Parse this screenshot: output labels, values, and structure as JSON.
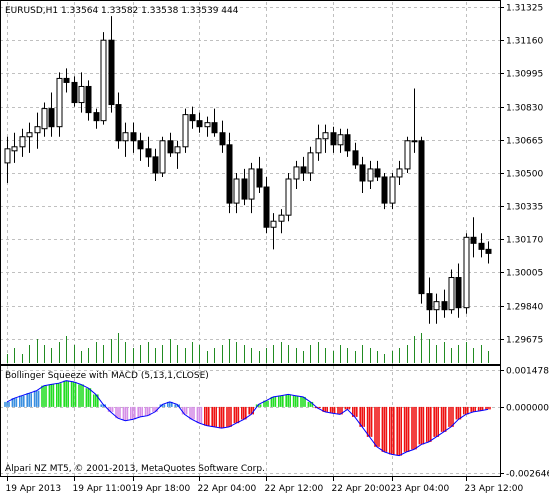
{
  "header": {
    "symbol_info": "EURUSD,H1  1.33564 1.33582 1.33538 1.33539  444"
  },
  "indicator": {
    "title": "Bollinger Squeeze with MACD (5,13,1,CLOSE)",
    "copyright": "Alpari NZ MT5, © 2001-2013, MetaQuotes Software Corp."
  },
  "colors": {
    "bull": "#ffffff",
    "bear": "#000000",
    "volume": "#228b22",
    "grid": "#c0c0c0",
    "hist_blue": "#3a8fe0",
    "hist_green": "#22dd22",
    "hist_violet": "#d58ee6",
    "hist_red": "#ee1111",
    "macd_line": "#0000ff"
  },
  "chart_data": [
    {
      "type": "candlestick",
      "ylim": [
        1.2955,
        1.3135
      ],
      "y_ticks": [
        "1.31325",
        "1.31160",
        "1.30995",
        "1.30830",
        "1.30665",
        "1.30500",
        "1.30335",
        "1.30170",
        "1.30005",
        "1.29840",
        "1.29675"
      ],
      "x_ticks": [
        "19 Apr 2013",
        "19 Apr 11:00",
        "19 Apr 18:00",
        "22 Apr 04:00",
        "22 Apr 12:00",
        "22 Apr 20:00",
        "23 Apr 04:00",
        "23 Apr 12:00"
      ],
      "ohlc": [
        [
          1.3055,
          1.3068,
          1.3045,
          1.3062
        ],
        [
          1.3061,
          1.307,
          1.3055,
          1.3063
        ],
        [
          1.3063,
          1.3072,
          1.3058,
          1.3068
        ],
        [
          1.3068,
          1.3075,
          1.306,
          1.307
        ],
        [
          1.307,
          1.308,
          1.3062,
          1.3073
        ],
        [
          1.3072,
          1.3085,
          1.3068,
          1.3082
        ],
        [
          1.3082,
          1.309,
          1.3068,
          1.3073
        ],
        [
          1.3073,
          1.31,
          1.3068,
          1.3097
        ],
        [
          1.3097,
          1.3102,
          1.309,
          1.3095
        ],
        [
          1.3095,
          1.3098,
          1.3083,
          1.3085
        ],
        [
          1.3085,
          1.31,
          1.308,
          1.3093
        ],
        [
          1.3093,
          1.3096,
          1.3076,
          1.308
        ],
        [
          1.308,
          1.3082,
          1.3072,
          1.3076
        ],
        [
          1.3076,
          1.312,
          1.3074,
          1.3116
        ],
        [
          1.3116,
          1.3128,
          1.308,
          1.3084
        ],
        [
          1.3084,
          1.309,
          1.3062,
          1.3066
        ],
        [
          1.3066,
          1.3075,
          1.3058,
          1.307
        ],
        [
          1.307,
          1.3075,
          1.306,
          1.3066
        ],
        [
          1.3066,
          1.307,
          1.3056,
          1.3062
        ],
        [
          1.3062,
          1.3068,
          1.3053,
          1.3058
        ],
        [
          1.3058,
          1.3062,
          1.3046,
          1.305
        ],
        [
          1.305,
          1.3068,
          1.3048,
          1.3066
        ],
        [
          1.3066,
          1.307,
          1.3058,
          1.306
        ],
        [
          1.306,
          1.3066,
          1.3052,
          1.3063
        ],
        [
          1.3063,
          1.3082,
          1.306,
          1.3079
        ],
        [
          1.3079,
          1.3083,
          1.3072,
          1.3076
        ],
        [
          1.3076,
          1.308,
          1.307,
          1.3073
        ],
        [
          1.3073,
          1.3078,
          1.3068,
          1.3075
        ],
        [
          1.3075,
          1.3082,
          1.3068,
          1.307
        ],
        [
          1.307,
          1.3076,
          1.306,
          1.3064
        ],
        [
          1.3064,
          1.307,
          1.303,
          1.3035
        ],
        [
          1.3035,
          1.305,
          1.303,
          1.3047
        ],
        [
          1.3047,
          1.3052,
          1.3034,
          1.3037
        ],
        [
          1.3037,
          1.3055,
          1.303,
          1.3052
        ],
        [
          1.3052,
          1.3058,
          1.304,
          1.3043
        ],
        [
          1.3043,
          1.3048,
          1.302,
          1.3023
        ],
        [
          1.3023,
          1.303,
          1.3012,
          1.3026
        ],
        [
          1.3026,
          1.3032,
          1.302,
          1.3029
        ],
        [
          1.3029,
          1.305,
          1.3026,
          1.3047
        ],
        [
          1.3047,
          1.3056,
          1.3042,
          1.3053
        ],
        [
          1.3053,
          1.3058,
          1.3046,
          1.305
        ],
        [
          1.305,
          1.3063,
          1.3046,
          1.306
        ],
        [
          1.306,
          1.3074,
          1.3056,
          1.3067
        ],
        [
          1.3067,
          1.3074,
          1.306,
          1.307
        ],
        [
          1.307,
          1.3073,
          1.306,
          1.3064
        ],
        [
          1.3064,
          1.3072,
          1.306,
          1.3069
        ],
        [
          1.3069,
          1.3072,
          1.3058,
          1.3061
        ],
        [
          1.3061,
          1.3065,
          1.3052,
          1.3054
        ],
        [
          1.3054,
          1.3058,
          1.304,
          1.3046
        ],
        [
          1.3046,
          1.3056,
          1.3042,
          1.3052
        ],
        [
          1.3052,
          1.3056,
          1.3046,
          1.3048
        ],
        [
          1.3048,
          1.305,
          1.3032,
          1.3035
        ],
        [
          1.3035,
          1.305,
          1.3032,
          1.3048
        ],
        [
          1.3048,
          1.3056,
          1.3044,
          1.3052
        ],
        [
          1.3052,
          1.3068,
          1.305,
          1.3066
        ],
        [
          1.3066,
          1.3092,
          1.306,
          1.3066
        ],
        [
          1.3066,
          1.3068,
          1.2985,
          1.299
        ],
        [
          1.299,
          1.2998,
          1.2975,
          1.2982
        ],
        [
          1.2982,
          1.299,
          1.2975,
          1.2986
        ],
        [
          1.2986,
          1.2992,
          1.2978,
          1.2982
        ],
        [
          1.2982,
          1.3002,
          1.298,
          1.2998
        ],
        [
          1.2998,
          1.3005,
          1.2978,
          1.2983
        ],
        [
          1.2983,
          1.302,
          1.298,
          1.3018
        ],
        [
          1.3018,
          1.3028,
          1.3008,
          1.3015
        ],
        [
          1.3015,
          1.302,
          1.3008,
          1.3012
        ],
        [
          1.3012,
          1.3016,
          1.3005,
          1.301
        ]
      ],
      "volume": [
        3,
        5,
        3,
        6,
        8,
        6,
        5,
        7,
        9,
        6,
        4,
        5,
        7,
        6,
        8,
        10,
        7,
        5,
        6,
        7,
        5,
        6,
        8,
        6,
        5,
        7,
        6,
        4,
        5,
        6,
        8,
        7,
        6,
        5,
        4,
        5,
        6,
        7,
        6,
        5,
        4,
        6,
        7,
        5,
        4,
        6,
        5,
        4,
        6,
        5,
        4,
        3,
        4,
        5,
        6,
        9,
        10,
        8,
        6,
        7,
        5,
        6,
        7,
        5,
        6,
        4
      ]
    },
    {
      "type": "bar",
      "name": "Bollinger Squeeze with MACD",
      "ylim": [
        -0.002646,
        0.001478
      ],
      "y_ticks": [
        "0.001478",
        "0.000000",
        "-0.002646"
      ],
      "values": [
        0.0002,
        0.00035,
        0.00045,
        0.00055,
        0.00065,
        0.00085,
        0.0009,
        0.00095,
        0.00105,
        0.001,
        0.0009,
        0.00075,
        0.0005,
        0.0001,
        -0.0002,
        -0.00045,
        -0.00055,
        -0.0005,
        -0.0004,
        -0.00035,
        -0.0002,
        0.0001,
        0.0002,
        0.0001,
        -0.0003,
        -0.0005,
        -0.00065,
        -0.00075,
        -0.0008,
        -0.00085,
        -0.0008,
        -0.00065,
        -0.0005,
        -0.0003,
        0.0001,
        0.00025,
        0.0004,
        0.00045,
        0.0005,
        0.00045,
        0.0004,
        0.0002,
        -5e-05,
        -0.0002,
        -0.00025,
        -0.0003,
        -0.0001,
        -0.0004,
        -0.0008,
        -0.0012,
        -0.0016,
        -0.0018,
        -0.0019,
        -0.00195,
        -0.0018,
        -0.0017,
        -0.0015,
        -0.0014,
        -0.0012,
        -0.001,
        -0.0008,
        -0.0005,
        -0.0003,
        -0.0002,
        -0.00015,
        -0.0001
      ],
      "colors": [
        "hist_blue",
        "hist_blue",
        "hist_blue",
        "hist_blue",
        "hist_blue",
        "hist_green",
        "hist_green",
        "hist_green",
        "hist_green",
        "hist_green",
        "hist_green",
        "hist_green",
        "hist_green",
        "hist_blue",
        "hist_violet",
        "hist_violet",
        "hist_violet",
        "hist_violet",
        "hist_violet",
        "hist_violet",
        "hist_violet",
        "hist_blue",
        "hist_blue",
        "hist_blue",
        "hist_violet",
        "hist_violet",
        "hist_violet",
        "hist_red",
        "hist_red",
        "hist_red",
        "hist_red",
        "hist_red",
        "hist_red",
        "hist_red",
        "hist_green",
        "hist_green",
        "hist_green",
        "hist_green",
        "hist_green",
        "hist_green",
        "hist_green",
        "hist_green",
        "hist_red",
        "hist_red",
        "hist_red",
        "hist_red",
        "hist_red",
        "hist_red",
        "hist_red",
        "hist_red",
        "hist_red",
        "hist_red",
        "hist_red",
        "hist_red",
        "hist_red",
        "hist_red",
        "hist_red",
        "hist_red",
        "hist_red",
        "hist_red",
        "hist_red",
        "hist_red",
        "hist_red",
        "hist_red",
        "hist_red",
        "hist_red"
      ]
    }
  ]
}
